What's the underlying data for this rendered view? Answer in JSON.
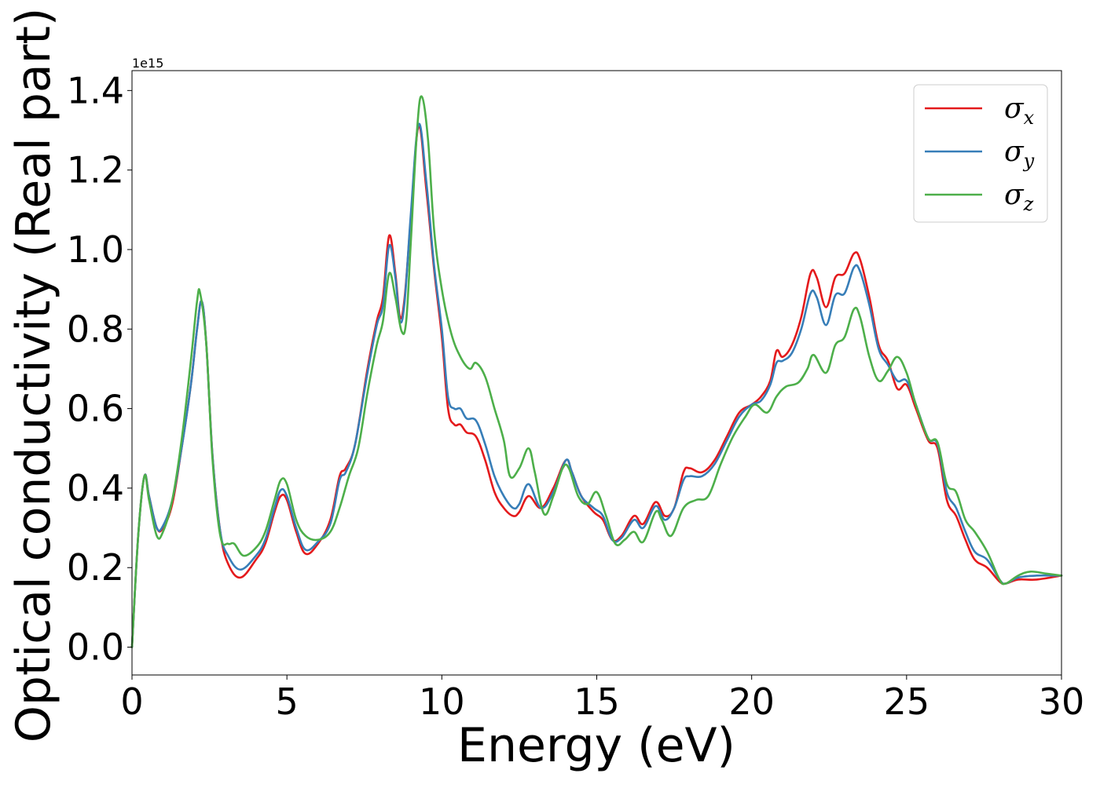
{
  "chart_data": {
    "type": "line",
    "title": "",
    "xlabel": "Energy (eV)",
    "ylabel": "Optical conductivity (Real part)",
    "y_offset_label": "1e15",
    "y_scale": 1000000000000000.0,
    "xlim": [
      0,
      30
    ],
    "ylim": [
      -0.07,
      1.45
    ],
    "x_ticks": [
      0,
      5,
      10,
      15,
      20,
      25,
      30
    ],
    "x_tick_labels": [
      "0",
      "5",
      "10",
      "15",
      "20",
      "25",
      "30"
    ],
    "y_ticks": [
      0.0,
      0.2,
      0.4,
      0.6,
      0.8,
      1.0,
      1.2,
      1.4
    ],
    "y_tick_labels": [
      "0.0",
      "0.2",
      "0.4",
      "0.6",
      "0.8",
      "1.0",
      "1.2",
      "1.4"
    ],
    "grid": false,
    "legend_position": "top-right",
    "series": [
      {
        "name": "σ",
        "subscript": "x",
        "color": "#e41a1c",
        "points": [
          [
            0,
            0.0
          ],
          [
            0.2,
            0.28
          ],
          [
            0.4,
            0.43
          ],
          [
            0.55,
            0.38
          ],
          [
            0.8,
            0.3
          ],
          [
            1.0,
            0.3
          ],
          [
            1.3,
            0.36
          ],
          [
            1.6,
            0.5
          ],
          [
            1.9,
            0.66
          ],
          [
            2.1,
            0.8
          ],
          [
            2.25,
            0.87
          ],
          [
            2.4,
            0.76
          ],
          [
            2.6,
            0.48
          ],
          [
            2.85,
            0.29
          ],
          [
            3.1,
            0.21
          ],
          [
            3.5,
            0.175
          ],
          [
            4.0,
            0.22
          ],
          [
            4.3,
            0.26
          ],
          [
            4.6,
            0.34
          ],
          [
            4.8,
            0.38
          ],
          [
            5.0,
            0.37
          ],
          [
            5.3,
            0.29
          ],
          [
            5.6,
            0.235
          ],
          [
            6.0,
            0.26
          ],
          [
            6.4,
            0.32
          ],
          [
            6.7,
            0.43
          ],
          [
            6.9,
            0.45
          ],
          [
            7.2,
            0.51
          ],
          [
            7.6,
            0.7
          ],
          [
            7.9,
            0.82
          ],
          [
            8.1,
            0.88
          ],
          [
            8.3,
            1.035
          ],
          [
            8.5,
            0.94
          ],
          [
            8.65,
            0.83
          ],
          [
            8.8,
            0.88
          ],
          [
            9.0,
            1.08
          ],
          [
            9.25,
            1.31
          ],
          [
            9.5,
            1.15
          ],
          [
            9.75,
            0.95
          ],
          [
            10.0,
            0.78
          ],
          [
            10.2,
            0.6
          ],
          [
            10.4,
            0.56
          ],
          [
            10.6,
            0.56
          ],
          [
            10.8,
            0.54
          ],
          [
            11.1,
            0.53
          ],
          [
            11.4,
            0.47
          ],
          [
            11.7,
            0.39
          ],
          [
            12.0,
            0.35
          ],
          [
            12.3,
            0.33
          ],
          [
            12.5,
            0.34
          ],
          [
            12.8,
            0.38
          ],
          [
            13.2,
            0.35
          ],
          [
            13.6,
            0.4
          ],
          [
            14.0,
            0.47
          ],
          [
            14.2,
            0.44
          ],
          [
            14.5,
            0.38
          ],
          [
            14.9,
            0.34
          ],
          [
            15.2,
            0.32
          ],
          [
            15.5,
            0.27
          ],
          [
            15.8,
            0.28
          ],
          [
            16.2,
            0.33
          ],
          [
            16.5,
            0.31
          ],
          [
            16.9,
            0.365
          ],
          [
            17.2,
            0.33
          ],
          [
            17.5,
            0.35
          ],
          [
            17.8,
            0.44
          ],
          [
            18.0,
            0.45
          ],
          [
            18.4,
            0.44
          ],
          [
            18.8,
            0.47
          ],
          [
            19.2,
            0.53
          ],
          [
            19.6,
            0.59
          ],
          [
            20.0,
            0.61
          ],
          [
            20.3,
            0.63
          ],
          [
            20.6,
            0.67
          ],
          [
            20.8,
            0.745
          ],
          [
            21.0,
            0.73
          ],
          [
            21.3,
            0.76
          ],
          [
            21.6,
            0.83
          ],
          [
            21.9,
            0.94
          ],
          [
            22.1,
            0.93
          ],
          [
            22.4,
            0.855
          ],
          [
            22.7,
            0.93
          ],
          [
            23.0,
            0.94
          ],
          [
            23.3,
            0.99
          ],
          [
            23.5,
            0.975
          ],
          [
            23.8,
            0.88
          ],
          [
            24.1,
            0.76
          ],
          [
            24.4,
            0.72
          ],
          [
            24.7,
            0.65
          ],
          [
            25.0,
            0.66
          ],
          [
            25.3,
            0.6
          ],
          [
            25.7,
            0.52
          ],
          [
            26.0,
            0.5
          ],
          [
            26.3,
            0.37
          ],
          [
            26.6,
            0.33
          ],
          [
            26.9,
            0.27
          ],
          [
            27.2,
            0.22
          ],
          [
            27.6,
            0.2
          ],
          [
            28.0,
            0.165
          ],
          [
            28.2,
            0.16
          ],
          [
            28.6,
            0.17
          ],
          [
            29.2,
            0.17
          ],
          [
            30.0,
            0.18
          ]
        ]
      },
      {
        "name": "σ",
        "subscript": "y",
        "color": "#377eb8",
        "points": [
          [
            0,
            0.0
          ],
          [
            0.2,
            0.28
          ],
          [
            0.4,
            0.43
          ],
          [
            0.55,
            0.38
          ],
          [
            0.8,
            0.3
          ],
          [
            1.0,
            0.305
          ],
          [
            1.3,
            0.37
          ],
          [
            1.6,
            0.5
          ],
          [
            1.9,
            0.66
          ],
          [
            2.1,
            0.8
          ],
          [
            2.25,
            0.87
          ],
          [
            2.4,
            0.76
          ],
          [
            2.6,
            0.48
          ],
          [
            2.85,
            0.29
          ],
          [
            3.1,
            0.23
          ],
          [
            3.5,
            0.195
          ],
          [
            4.0,
            0.23
          ],
          [
            4.3,
            0.27
          ],
          [
            4.6,
            0.35
          ],
          [
            4.8,
            0.395
          ],
          [
            5.0,
            0.38
          ],
          [
            5.3,
            0.3
          ],
          [
            5.6,
            0.245
          ],
          [
            6.0,
            0.265
          ],
          [
            6.4,
            0.31
          ],
          [
            6.7,
            0.42
          ],
          [
            6.9,
            0.44
          ],
          [
            7.2,
            0.51
          ],
          [
            7.6,
            0.69
          ],
          [
            7.9,
            0.81
          ],
          [
            8.1,
            0.86
          ],
          [
            8.3,
            1.01
          ],
          [
            8.5,
            0.93
          ],
          [
            8.65,
            0.82
          ],
          [
            8.8,
            0.87
          ],
          [
            9.0,
            1.09
          ],
          [
            9.25,
            1.315
          ],
          [
            9.5,
            1.17
          ],
          [
            9.75,
            0.96
          ],
          [
            10.0,
            0.8
          ],
          [
            10.2,
            0.63
          ],
          [
            10.4,
            0.6
          ],
          [
            10.6,
            0.6
          ],
          [
            10.8,
            0.575
          ],
          [
            11.1,
            0.57
          ],
          [
            11.4,
            0.51
          ],
          [
            11.7,
            0.43
          ],
          [
            12.0,
            0.38
          ],
          [
            12.3,
            0.35
          ],
          [
            12.5,
            0.36
          ],
          [
            12.8,
            0.41
          ],
          [
            13.2,
            0.35
          ],
          [
            13.6,
            0.39
          ],
          [
            14.0,
            0.47
          ],
          [
            14.2,
            0.44
          ],
          [
            14.5,
            0.38
          ],
          [
            14.9,
            0.35
          ],
          [
            15.2,
            0.33
          ],
          [
            15.5,
            0.27
          ],
          [
            15.8,
            0.275
          ],
          [
            16.2,
            0.32
          ],
          [
            16.5,
            0.3
          ],
          [
            16.9,
            0.355
          ],
          [
            17.2,
            0.32
          ],
          [
            17.5,
            0.35
          ],
          [
            17.8,
            0.42
          ],
          [
            18.0,
            0.43
          ],
          [
            18.4,
            0.43
          ],
          [
            18.8,
            0.46
          ],
          [
            19.2,
            0.52
          ],
          [
            19.6,
            0.58
          ],
          [
            20.0,
            0.61
          ],
          [
            20.3,
            0.62
          ],
          [
            20.6,
            0.66
          ],
          [
            20.8,
            0.715
          ],
          [
            21.0,
            0.72
          ],
          [
            21.3,
            0.74
          ],
          [
            21.6,
            0.8
          ],
          [
            21.9,
            0.89
          ],
          [
            22.1,
            0.88
          ],
          [
            22.4,
            0.81
          ],
          [
            22.7,
            0.885
          ],
          [
            23.0,
            0.89
          ],
          [
            23.3,
            0.955
          ],
          [
            23.5,
            0.945
          ],
          [
            23.8,
            0.86
          ],
          [
            24.1,
            0.75
          ],
          [
            24.4,
            0.71
          ],
          [
            24.7,
            0.67
          ],
          [
            25.0,
            0.67
          ],
          [
            25.3,
            0.61
          ],
          [
            25.7,
            0.525
          ],
          [
            26.0,
            0.51
          ],
          [
            26.3,
            0.39
          ],
          [
            26.6,
            0.35
          ],
          [
            26.9,
            0.29
          ],
          [
            27.2,
            0.24
          ],
          [
            27.6,
            0.22
          ],
          [
            28.0,
            0.17
          ],
          [
            28.2,
            0.16
          ],
          [
            28.6,
            0.175
          ],
          [
            29.2,
            0.18
          ],
          [
            30.0,
            0.18
          ]
        ]
      },
      {
        "name": "σ",
        "subscript": "z",
        "color": "#4daf4a",
        "points": [
          [
            0,
            0.0
          ],
          [
            0.2,
            0.28
          ],
          [
            0.4,
            0.43
          ],
          [
            0.55,
            0.37
          ],
          [
            0.8,
            0.28
          ],
          [
            1.0,
            0.29
          ],
          [
            1.3,
            0.37
          ],
          [
            1.6,
            0.52
          ],
          [
            1.9,
            0.72
          ],
          [
            2.1,
            0.87
          ],
          [
            2.2,
            0.89
          ],
          [
            2.4,
            0.76
          ],
          [
            2.6,
            0.47
          ],
          [
            2.85,
            0.28
          ],
          [
            3.1,
            0.26
          ],
          [
            3.3,
            0.26
          ],
          [
            3.6,
            0.23
          ],
          [
            4.0,
            0.25
          ],
          [
            4.3,
            0.29
          ],
          [
            4.6,
            0.37
          ],
          [
            4.8,
            0.42
          ],
          [
            5.0,
            0.41
          ],
          [
            5.3,
            0.32
          ],
          [
            5.6,
            0.28
          ],
          [
            6.0,
            0.27
          ],
          [
            6.4,
            0.29
          ],
          [
            6.7,
            0.35
          ],
          [
            7.0,
            0.43
          ],
          [
            7.3,
            0.5
          ],
          [
            7.6,
            0.64
          ],
          [
            7.9,
            0.76
          ],
          [
            8.1,
            0.82
          ],
          [
            8.3,
            0.94
          ],
          [
            8.5,
            0.88
          ],
          [
            8.7,
            0.795
          ],
          [
            8.85,
            0.82
          ],
          [
            9.0,
            1.02
          ],
          [
            9.2,
            1.3
          ],
          [
            9.35,
            1.385
          ],
          [
            9.55,
            1.28
          ],
          [
            9.75,
            1.05
          ],
          [
            10.0,
            0.9
          ],
          [
            10.3,
            0.79
          ],
          [
            10.6,
            0.73
          ],
          [
            10.9,
            0.7
          ],
          [
            11.1,
            0.715
          ],
          [
            11.4,
            0.68
          ],
          [
            11.7,
            0.6
          ],
          [
            12.0,
            0.52
          ],
          [
            12.2,
            0.43
          ],
          [
            12.5,
            0.45
          ],
          [
            12.8,
            0.5
          ],
          [
            13.0,
            0.44
          ],
          [
            13.3,
            0.335
          ],
          [
            13.6,
            0.38
          ],
          [
            13.9,
            0.45
          ],
          [
            14.1,
            0.45
          ],
          [
            14.4,
            0.38
          ],
          [
            14.7,
            0.36
          ],
          [
            15.0,
            0.39
          ],
          [
            15.3,
            0.33
          ],
          [
            15.6,
            0.26
          ],
          [
            15.9,
            0.27
          ],
          [
            16.2,
            0.29
          ],
          [
            16.5,
            0.265
          ],
          [
            16.9,
            0.34
          ],
          [
            17.1,
            0.32
          ],
          [
            17.4,
            0.28
          ],
          [
            17.8,
            0.35
          ],
          [
            18.2,
            0.37
          ],
          [
            18.6,
            0.38
          ],
          [
            19.0,
            0.46
          ],
          [
            19.4,
            0.53
          ],
          [
            19.8,
            0.58
          ],
          [
            20.1,
            0.61
          ],
          [
            20.5,
            0.59
          ],
          [
            20.8,
            0.63
          ],
          [
            21.1,
            0.655
          ],
          [
            21.5,
            0.665
          ],
          [
            21.8,
            0.7
          ],
          [
            22.0,
            0.735
          ],
          [
            22.4,
            0.69
          ],
          [
            22.7,
            0.76
          ],
          [
            23.0,
            0.78
          ],
          [
            23.3,
            0.85
          ],
          [
            23.5,
            0.83
          ],
          [
            23.8,
            0.73
          ],
          [
            24.1,
            0.67
          ],
          [
            24.4,
            0.695
          ],
          [
            24.7,
            0.73
          ],
          [
            25.0,
            0.69
          ],
          [
            25.3,
            0.61
          ],
          [
            25.7,
            0.525
          ],
          [
            26.0,
            0.515
          ],
          [
            26.3,
            0.41
          ],
          [
            26.6,
            0.39
          ],
          [
            26.9,
            0.32
          ],
          [
            27.2,
            0.29
          ],
          [
            27.6,
            0.24
          ],
          [
            28.0,
            0.17
          ],
          [
            28.2,
            0.16
          ],
          [
            28.6,
            0.18
          ],
          [
            29.0,
            0.19
          ],
          [
            29.5,
            0.185
          ],
          [
            30.0,
            0.18
          ]
        ]
      }
    ]
  }
}
